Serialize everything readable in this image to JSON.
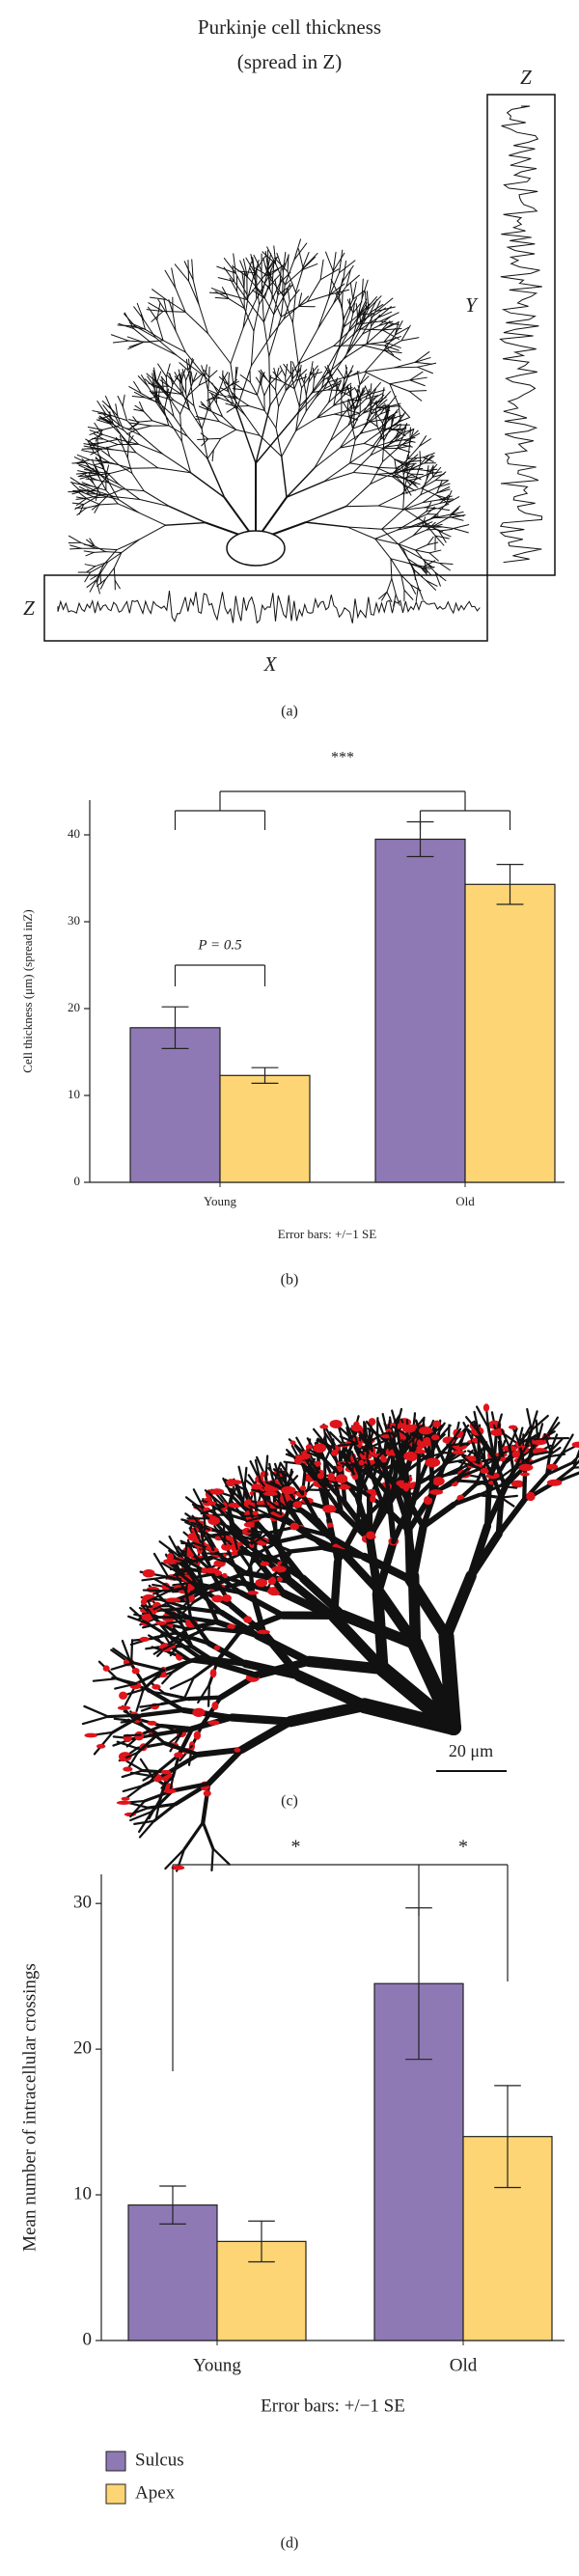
{
  "figure": {
    "title_line1": "Purkinje cell thickness",
    "title_line2": "(spread in Z)",
    "axis_z_side": "Z",
    "axis_y": "Y",
    "axis_z_bottom": "Z",
    "axis_x": "X",
    "panel_a": "(a)",
    "panel_b": "(b)",
    "panel_c": "(c)",
    "panel_d": "(d)",
    "scale_bar": "20 μm"
  },
  "chart_data": [
    {
      "type": "bar",
      "y_label": "Cell thickness (μm) (spread inZ)",
      "categories": [
        "Young",
        "Old"
      ],
      "series": [
        {
          "color": "#8e79b5",
          "values": [
            17.8,
            39.5
          ],
          "errors": [
            2.4,
            2.0
          ]
        },
        {
          "color": "#fdd574",
          "values": [
            12.3,
            34.3
          ],
          "errors": [
            0.9,
            2.3
          ]
        }
      ],
      "ylim": [
        0,
        44
      ],
      "yticks": [
        0,
        10,
        20,
        30,
        40
      ],
      "footer": "Error bars: +/−1 SE",
      "annotations": [
        "P = 0.5",
        "***"
      ]
    },
    {
      "type": "bar",
      "y_label": "Mean number of intracellular crossings",
      "categories": [
        "Young",
        "Old"
      ],
      "series": [
        {
          "name": "Sulcus",
          "color": "#8e79b5",
          "values": [
            9.3,
            24.5
          ],
          "errors": [
            1.3,
            5.2
          ]
        },
        {
          "name": "Apex",
          "color": "#fdd574",
          "values": [
            6.8,
            14.0
          ],
          "errors": [
            1.4,
            3.5
          ]
        }
      ],
      "ylim": [
        0,
        32
      ],
      "yticks": [
        0,
        10,
        20,
        30
      ],
      "footer": "Error bars: +/−1 SE",
      "annotations": [
        "*",
        "*"
      ],
      "legend": "bottom-left"
    }
  ]
}
